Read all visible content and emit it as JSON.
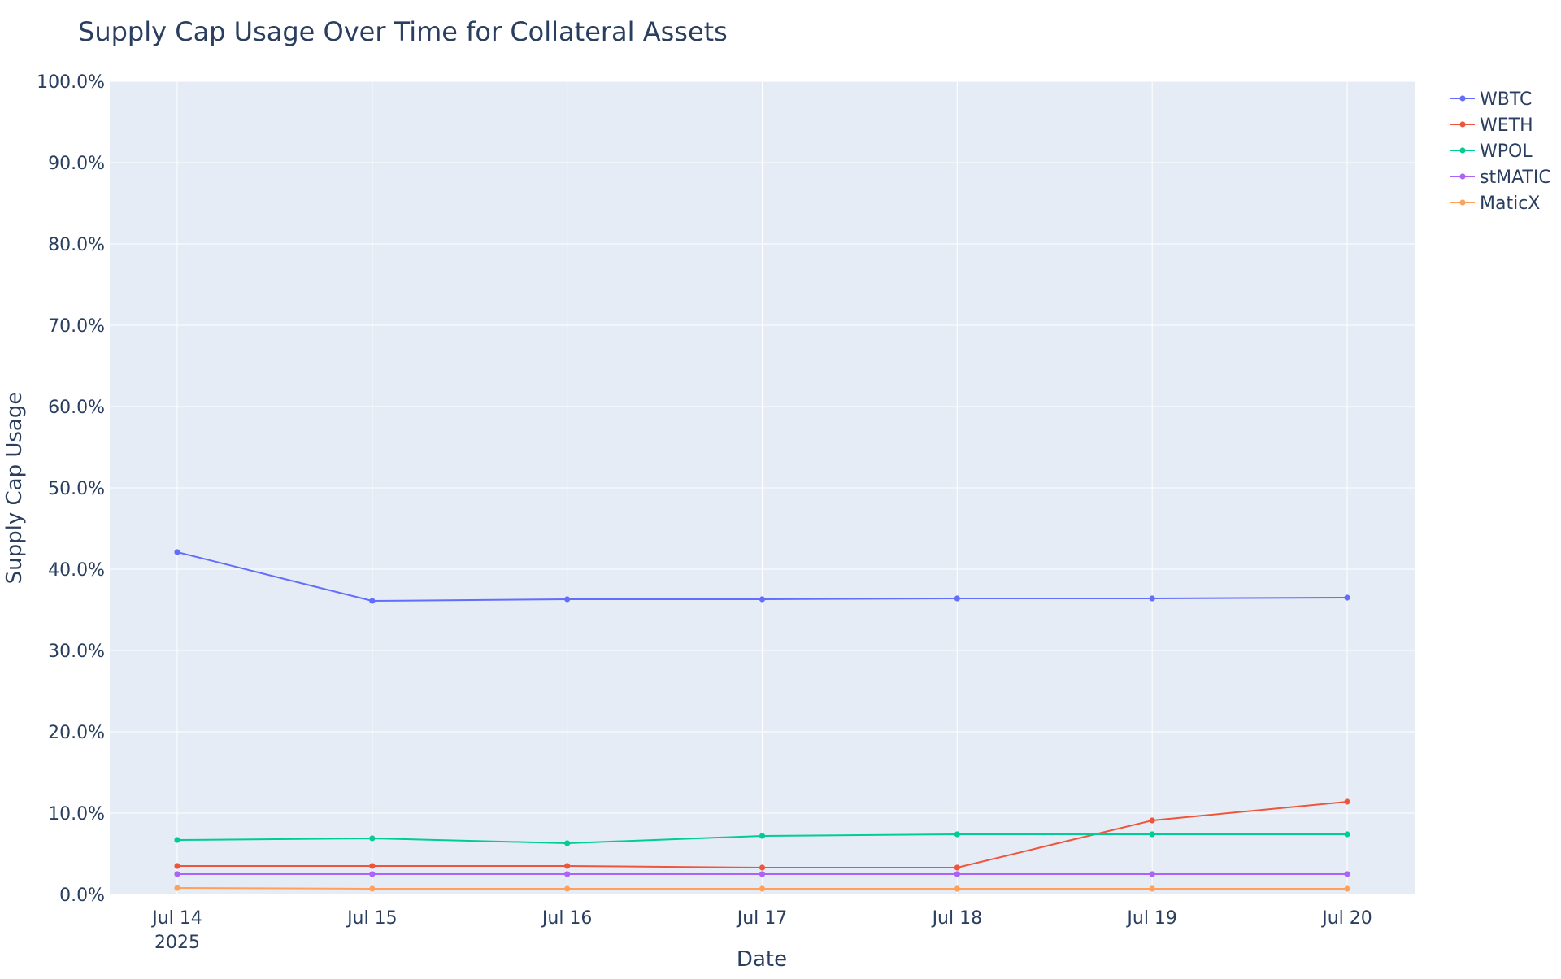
{
  "chart_data": {
    "type": "line",
    "title": "Supply Cap Usage Over Time for Collateral Assets",
    "xlabel": "Date",
    "ylabel": "Supply Cap Usage",
    "ylim": [
      0,
      1
    ],
    "y_tick_format": "percent_1dp",
    "y_ticks": [
      0,
      0.1,
      0.2,
      0.3,
      0.4,
      0.5,
      0.6,
      0.7,
      0.8,
      0.9,
      1.0
    ],
    "y_tick_labels": [
      "0.0%",
      "10.0%",
      "20.0%",
      "30.0%",
      "40.0%",
      "50.0%",
      "60.0%",
      "70.0%",
      "80.0%",
      "90.0%",
      "100.0%"
    ],
    "x": [
      "2025-07-14",
      "2025-07-15",
      "2025-07-16",
      "2025-07-17",
      "2025-07-18",
      "2025-07-19",
      "2025-07-20"
    ],
    "x_tick_labels": [
      "Jul 14",
      "Jul 15",
      "Jul 16",
      "Jul 17",
      "Jul 18",
      "Jul 19",
      "Jul 20"
    ],
    "x_tick_year_label": "2025",
    "grid": true,
    "legend_position": "top-right",
    "plot_background": "#e5ecf6",
    "series": [
      {
        "name": "WBTC",
        "color": "#636efa",
        "values": [
          0.421,
          0.361,
          0.363,
          0.363,
          0.364,
          0.364,
          0.365
        ]
      },
      {
        "name": "WETH",
        "color": "#ef553b",
        "values": [
          0.035,
          0.035,
          0.035,
          0.033,
          0.033,
          0.091,
          0.114
        ]
      },
      {
        "name": "WPOL",
        "color": "#00cc96",
        "values": [
          0.067,
          0.069,
          0.063,
          0.072,
          0.074,
          0.074,
          0.074
        ]
      },
      {
        "name": "stMATIC",
        "color": "#ab63fa",
        "values": [
          0.025,
          0.025,
          0.025,
          0.025,
          0.025,
          0.025,
          0.025
        ]
      },
      {
        "name": "MaticX",
        "color": "#ffa15a",
        "values": [
          0.008,
          0.007,
          0.007,
          0.007,
          0.007,
          0.007,
          0.007
        ]
      }
    ]
  }
}
